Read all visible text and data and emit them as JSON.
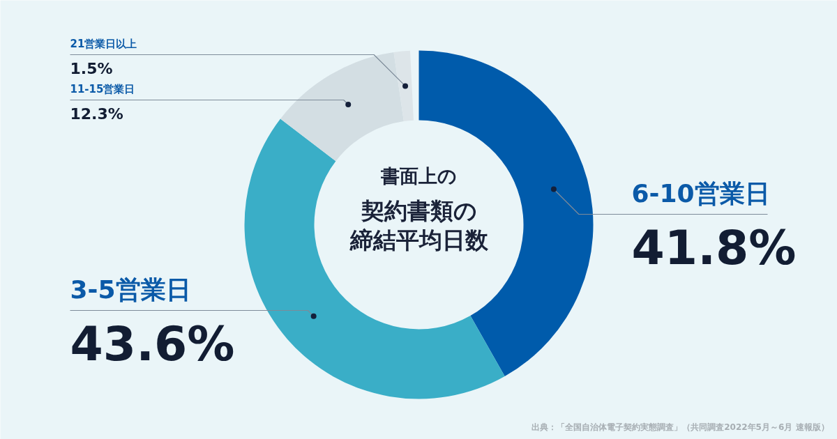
{
  "chart_data": {
    "type": "donut",
    "title": "書面上の",
    "subtitle": "契約書類の締結平均日数",
    "categories": [
      "6-10営業日",
      "3-5営業日",
      "11-15営業日",
      "21営業日以上"
    ],
    "values": [
      41.8,
      43.6,
      12.3,
      1.5
    ],
    "colors": [
      "#005bab",
      "#3aaec7",
      "#d3dee3",
      "#dde5e9"
    ],
    "value_labels": [
      "41.8%",
      "43.6%",
      "12.3%",
      "1.5%"
    ],
    "annotations": [
      "出典：「全国自治体電子契約実態調査」（共同調査2022年5月～6月 速報版）"
    ]
  }
}
